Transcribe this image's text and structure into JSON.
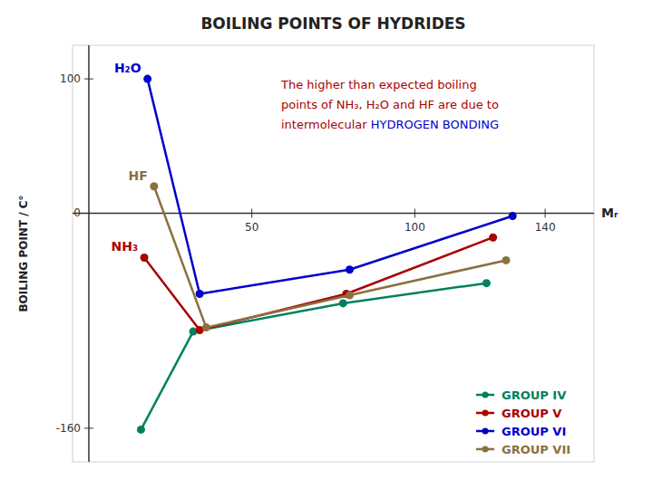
{
  "chart_data": {
    "type": "line",
    "title": "BOILING POINTS OF HYDRIDES",
    "x_label": "Mᵣ",
    "y_label": "BOILING POINT / C°",
    "xlim": [
      -5,
      155
    ],
    "ylim": [
      -185,
      125
    ],
    "xticks": [
      50,
      100,
      140
    ],
    "yticks": [
      100,
      0,
      -160
    ],
    "grid": false,
    "legend": "lower right",
    "marker": "circle",
    "series": [
      {
        "name": "GROUP IV",
        "color": "#008060",
        "x": [
          16,
          32,
          78,
          122
        ],
        "values": [
          -161,
          -88,
          -67,
          -52
        ]
      },
      {
        "name": "GROUP V",
        "color": "#AA0000",
        "x": [
          17,
          34,
          79,
          124
        ],
        "values": [
          -33,
          -87,
          -60,
          -18
        ]
      },
      {
        "name": "GROUP VI",
        "color": "#0000CC",
        "x": [
          18,
          34,
          80,
          130
        ],
        "values": [
          100,
          -60,
          -42,
          -2
        ]
      },
      {
        "name": "GROUP VII",
        "color": "#8B7040",
        "x": [
          20,
          36,
          80,
          128
        ],
        "values": [
          20,
          -85,
          -61,
          -35
        ]
      }
    ],
    "annotations": [
      {
        "text": "H₂O",
        "x": 18,
        "y": 100,
        "color": "#0000CC"
      },
      {
        "text": "HF",
        "x": 20,
        "y": 20,
        "color": "#8B7040"
      },
      {
        "text": "NH₃",
        "x": 17,
        "y": -33,
        "color": "#AA0000"
      }
    ],
    "note": [
      [
        {
          "text": "The higher than expected boiling",
          "color": "#AA0000"
        }
      ],
      [
        {
          "text": "points of NH₃, H₂O and HF are due to",
          "color": "#AA0000"
        }
      ],
      [
        {
          "text": "intermolecular ",
          "color": "#AA0000"
        },
        {
          "text": "HYDROGEN BONDING",
          "color": "#0000CC"
        }
      ]
    ]
  }
}
